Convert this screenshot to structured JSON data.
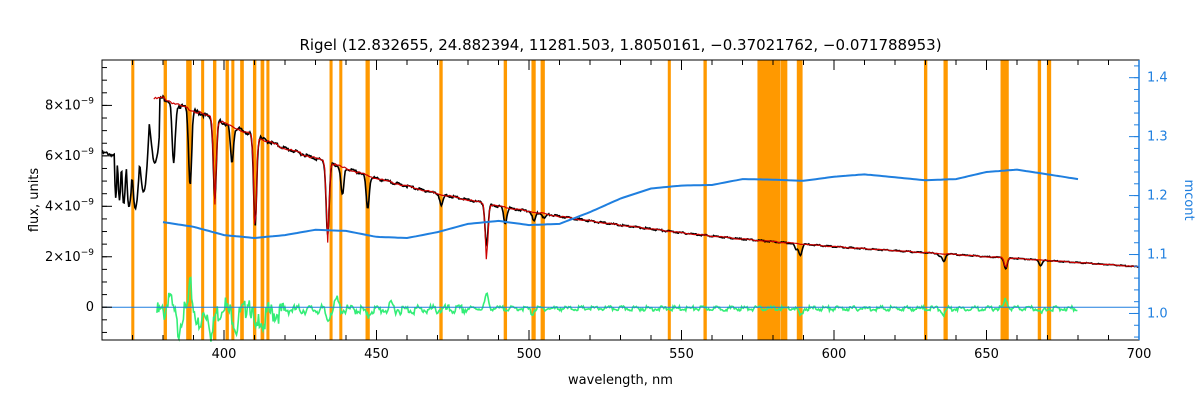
{
  "chart_data": {
    "type": "line",
    "title": "Rigel    (12.832655, 24.882394, 11281.503, 1.8050161, −0.37021762, −0.071788953)",
    "xlabel": "wavelength, nm",
    "ylabel": "flux, units",
    "y2label": "mcont",
    "xlim": [
      360,
      700
    ],
    "ylim": [
      -1.3e-09,
      9.8e-09
    ],
    "y2lim": [
      0.955,
      1.43
    ],
    "x_ticks": [
      400,
      450,
      500,
      550,
      600,
      650,
      700
    ],
    "y_ticks": [
      {
        "value": 0,
        "label": "0"
      },
      {
        "value": 2e-09,
        "label": "2×10",
        "exp": "−9"
      },
      {
        "value": 4e-09,
        "label": "4×10",
        "exp": "−9"
      },
      {
        "value": 6e-09,
        "label": "6×10",
        "exp": "−9"
      },
      {
        "value": 8e-09,
        "label": "8×10",
        "exp": "−9"
      }
    ],
    "y2_ticks": [
      1.0,
      1.1,
      1.2,
      1.3,
      1.4
    ],
    "y2_tick_labels": [
      "1.0",
      "1.1",
      "1.2",
      "1.3",
      "1.4"
    ],
    "masked_bands": [
      [
        369.6,
        370.6
      ],
      [
        380.2,
        381.3
      ],
      [
        387.6,
        389.4
      ],
      [
        392.5,
        393.5
      ],
      [
        396.4,
        397.5
      ],
      [
        400.5,
        401.6
      ],
      [
        402.4,
        403.4
      ],
      [
        405.3,
        406.5
      ],
      [
        409.5,
        410.6
      ],
      [
        412.0,
        413.2
      ],
      [
        413.9,
        414.9
      ],
      [
        434.6,
        435.6
      ],
      [
        437.8,
        438.8
      ],
      [
        446.4,
        447.8
      ],
      [
        470.6,
        471.7
      ],
      [
        491.7,
        492.8
      ],
      [
        500.8,
        502.2
      ],
      [
        503.8,
        505.2
      ],
      [
        545.5,
        546.5
      ],
      [
        557.2,
        558.3
      ],
      [
        574.9,
        582.5
      ],
      [
        582.6,
        584.7
      ],
      [
        587.8,
        589.7
      ],
      [
        629.5,
        630.6
      ],
      [
        635.9,
        637.3
      ],
      [
        654.6,
        657.3
      ],
      [
        666.8,
        667.9
      ],
      [
        669.8,
        671.2
      ]
    ],
    "band_color": "#ff9900",
    "series": [
      {
        "key": "observed",
        "color": "#000000",
        "x": [
          360,
          362,
          364,
          366,
          368,
          370,
          372,
          374,
          376,
          378,
          380,
          385,
          390,
          400,
          410,
          420,
          430,
          440,
          450,
          460,
          470,
          480,
          490,
          500,
          510,
          520,
          530,
          540,
          550,
          560,
          570,
          580,
          590,
          600,
          610,
          620,
          630,
          640,
          650,
          660,
          670,
          680,
          690,
          700
        ],
        "y": [
          6.1e-09,
          6.1e-09,
          6e-09,
          5.9e-09,
          5.6e-09,
          5.3e-09,
          5.6e-09,
          6.5e-09,
          7.5e-09,
          8.2e-09,
          8.3e-09,
          8e-09,
          7.8e-09,
          7.3e-09,
          6.8e-09,
          6.3e-09,
          5.9e-09,
          5.5e-09,
          5.1e-09,
          4.8e-09,
          4.5e-09,
          4.25e-09,
          4e-09,
          3.8e-09,
          3.6e-09,
          3.42e-09,
          3.25e-09,
          3.1e-09,
          2.95e-09,
          2.82e-09,
          2.7e-09,
          2.6e-09,
          2.5e-09,
          2.4e-09,
          2.32e-09,
          2.24e-09,
          2.16e-09,
          2.09e-09,
          2e-09,
          1.93e-09,
          1.85e-09,
          1.77e-09,
          1.69e-09,
          1.6e-09
        ],
        "absorption_lines": [
          {
            "x": 383.5,
            "depth": 0.3
          },
          {
            "x": 388.9,
            "depth": 0.38
          },
          {
            "x": 397.0,
            "depth": 0.42
          },
          {
            "x": 402.6,
            "depth": 0.2
          },
          {
            "x": 410.2,
            "depth": 0.52
          },
          {
            "x": 434.0,
            "depth": 0.5
          },
          {
            "x": 438.8,
            "depth": 0.2
          },
          {
            "x": 447.1,
            "depth": 0.25
          },
          {
            "x": 471.3,
            "depth": 0.1
          },
          {
            "x": 486.1,
            "depth": 0.4
          },
          {
            "x": 492.2,
            "depth": 0.16
          },
          {
            "x": 501.6,
            "depth": 0.1
          },
          {
            "x": 505.0,
            "depth": 0.05
          },
          {
            "x": 587.6,
            "depth": 0.1
          },
          {
            "x": 589.0,
            "depth": 0.18
          },
          {
            "x": 634.7,
            "depth": 0.05
          },
          {
            "x": 636.0,
            "depth": 0.15
          },
          {
            "x": 656.3,
            "depth": 0.22
          },
          {
            "x": 667.8,
            "depth": 0.12
          }
        ]
      },
      {
        "key": "model",
        "color": "#cc0000",
        "x": [
          377,
          380,
          385,
          390,
          400,
          410,
          420,
          430,
          440,
          450,
          460,
          470,
          480,
          490,
          500,
          510,
          520,
          530,
          540,
          550,
          560,
          570,
          580,
          590,
          600,
          610,
          620,
          630,
          640,
          650,
          660,
          670,
          680,
          690,
          700
        ],
        "y": [
          8.25e-09,
          8.3e-09,
          8e-09,
          7.8e-09,
          7.3e-09,
          6.8e-09,
          6.3e-09,
          5.9e-09,
          5.5e-09,
          5.1e-09,
          4.8e-09,
          4.5e-09,
          4.25e-09,
          4e-09,
          3.8e-09,
          3.6e-09,
          3.42e-09,
          3.25e-09,
          3.1e-09,
          2.95e-09,
          2.82e-09,
          2.7e-09,
          2.6e-09,
          2.5e-09,
          2.4e-09,
          2.32e-09,
          2.24e-09,
          2.16e-09,
          2.09e-09,
          2e-09,
          1.93e-09,
          1.85e-09,
          1.77e-09,
          1.69e-09,
          1.6e-09
        ],
        "absorption_lines": [
          {
            "x": 397.0,
            "depth": 0.45
          },
          {
            "x": 410.2,
            "depth": 0.58
          },
          {
            "x": 434.0,
            "depth": 0.55
          },
          {
            "x": 486.1,
            "depth": 0.55
          },
          {
            "x": 656.3,
            "depth": 0.2
          }
        ]
      },
      {
        "key": "residual",
        "color": "#33ee77",
        "x": [
          378,
          390,
          400,
          410,
          420,
          440,
          460,
          480,
          500,
          520,
          540,
          560,
          580,
          600,
          620,
          640,
          660,
          680
        ],
        "y": [
          0,
          0,
          0,
          0,
          0,
          0,
          0,
          0,
          0,
          0,
          0,
          0,
          0,
          0,
          0,
          0,
          0,
          0
        ],
        "spikes": [
          {
            "x": 382,
            "a": 8e-10
          },
          {
            "x": 385,
            "a": -7e-10
          },
          {
            "x": 389,
            "a": 1e-09
          },
          {
            "x": 392,
            "a": -8e-10
          },
          {
            "x": 396,
            "a": -9e-10
          },
          {
            "x": 400,
            "a": 5e-10
          },
          {
            "x": 404,
            "a": -6e-10
          },
          {
            "x": 408,
            "a": 6e-10
          },
          {
            "x": 410.5,
            "a": -9e-10
          },
          {
            "x": 413,
            "a": -5e-10
          },
          {
            "x": 434,
            "a": -4e-10
          },
          {
            "x": 437,
            "a": 4e-10
          },
          {
            "x": 447,
            "a": -3e-10
          },
          {
            "x": 455,
            "a": 2e-10
          },
          {
            "x": 486.1,
            "a": 5.5e-10
          },
          {
            "x": 501,
            "a": -2e-10
          },
          {
            "x": 589,
            "a": -3e-10
          },
          {
            "x": 636,
            "a": -2.5e-10
          },
          {
            "x": 656.3,
            "a": 3.5e-10
          },
          {
            "x": 668,
            "a": -2e-10
          }
        ]
      },
      {
        "key": "continuum_0",
        "color": "#cc0000",
        "axis": "left",
        "x": [
          360,
          700
        ],
        "y": [
          0,
          0
        ]
      },
      {
        "key": "mcont",
        "color": "#1f7fdf",
        "axis": "right",
        "x": [
          380,
          390,
          400,
          410,
          420,
          430,
          440,
          450,
          460,
          470,
          480,
          490,
          500,
          510,
          520,
          530,
          540,
          550,
          560,
          570,
          580,
          590,
          600,
          610,
          620,
          630,
          640,
          650,
          660,
          670,
          680
        ],
        "y": [
          1.155,
          1.147,
          1.133,
          1.128,
          1.133,
          1.142,
          1.14,
          1.13,
          1.128,
          1.138,
          1.152,
          1.157,
          1.15,
          1.152,
          1.172,
          1.195,
          1.212,
          1.217,
          1.218,
          1.228,
          1.227,
          1.225,
          1.232,
          1.236,
          1.231,
          1.226,
          1.228,
          1.24,
          1.244,
          1.236,
          1.228
        ]
      }
    ]
  },
  "colors": {
    "left_axis": "#000000",
    "right_axis": "#1f7fdf",
    "background": "#ffffff"
  }
}
